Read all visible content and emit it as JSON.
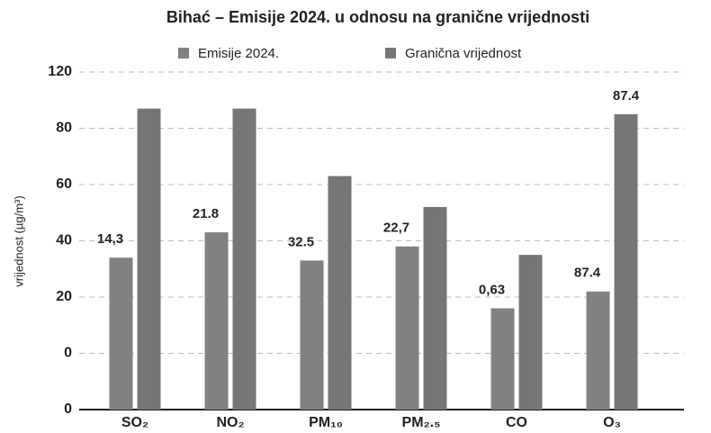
{
  "chart_data": {
    "type": "bar",
    "title": "Bihać – Emisije 2024. u odnosu na granične vrijednosti",
    "y_label": "vrijednost (µg/m³)",
    "categories": [
      "SO₂",
      "NO₂",
      "PM₁₀",
      "PM₂.₅",
      "CO",
      "O₃"
    ],
    "series": [
      {
        "name": "Emisije 2024.",
        "color": "#818181",
        "values": [
          54,
          63,
          53,
          58,
          36,
          42
        ],
        "labels": [
          "14,3",
          "21.8",
          "32.5",
          "22,7",
          "0,63",
          "87.4"
        ]
      },
      {
        "name": "Granična vrijednost",
        "color": "#767676",
        "values": [
          107,
          107,
          83,
          72,
          55,
          105
        ],
        "labels": [
          null,
          null,
          null,
          null,
          null,
          "87.4"
        ]
      }
    ],
    "ylim": [
      0,
      120
    ],
    "yticks": [
      0,
      {
        "value": 20,
        "label": "0"
      },
      {
        "value": 40,
        "label": "20"
      },
      {
        "value": 60,
        "label": "40"
      },
      {
        "value": 80,
        "label": "60"
      },
      {
        "value": 100,
        "label": "80"
      },
      120
    ],
    "grid": true,
    "legend": "top"
  }
}
